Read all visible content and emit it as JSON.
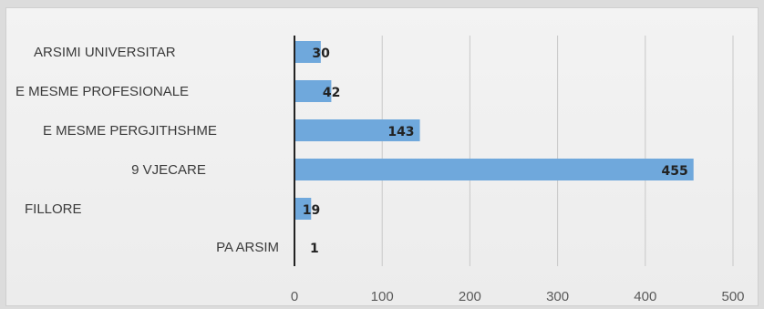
{
  "chart_data": {
    "type": "bar",
    "orientation": "horizontal",
    "title": "",
    "xlabel": "",
    "ylabel": "",
    "categories": [
      "ARSIMI UNIVERSITAR",
      "E MESME PROFESIONALE",
      "E MESME PERGJITHSHME",
      "9 VJECARE",
      "FILLORE",
      "PA ARSIM"
    ],
    "values": [
      30,
      42,
      143,
      455,
      19,
      1
    ],
    "data_labels": [
      "30",
      "42",
      "143",
      "455",
      "19",
      "1"
    ],
    "xlim": [
      0,
      500
    ],
    "xticks": [
      0,
      100,
      200,
      300,
      400,
      500
    ],
    "tick_labels": [
      "0",
      "100",
      "200",
      "300",
      "400",
      "500"
    ],
    "grid": "vertical",
    "legend": "none",
    "colors": {
      "bar": "#6fa8dc",
      "grid": "#c8c8c8",
      "axis": "#222222"
    }
  }
}
